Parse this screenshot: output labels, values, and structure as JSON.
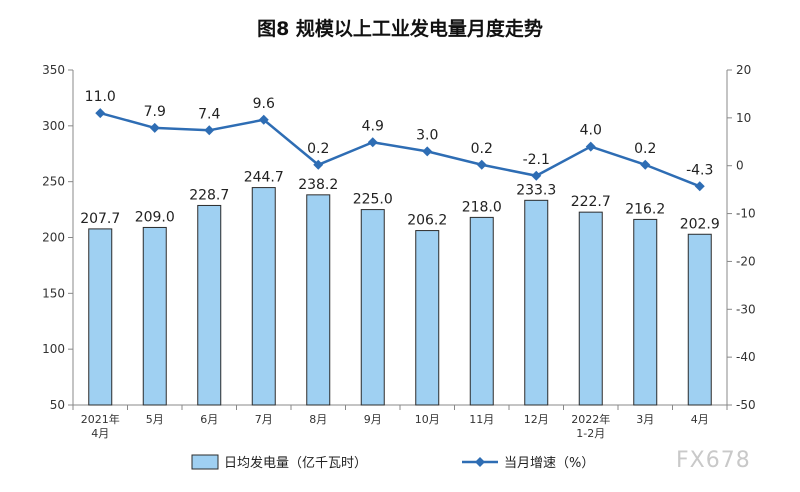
{
  "chart_data": {
    "type": "bar+line",
    "title": "图8  规模以上工业发电量月度走势",
    "categories": [
      [
        "2021年",
        "4月"
      ],
      [
        "5月"
      ],
      [
        "6月"
      ],
      [
        "7月"
      ],
      [
        "8月"
      ],
      [
        "9月"
      ],
      [
        "10月"
      ],
      [
        "11月"
      ],
      [
        "12月"
      ],
      [
        "2022年",
        "1-2月"
      ],
      [
        "3月"
      ],
      [
        "4月"
      ]
    ],
    "series": [
      {
        "name": "日均发电量（亿千瓦时）",
        "type": "bar",
        "axis": "left",
        "color": "#9fd0f2",
        "values": [
          207.7,
          209.0,
          228.7,
          244.7,
          238.2,
          225.0,
          206.2,
          218.0,
          233.3,
          222.7,
          216.2,
          202.9
        ],
        "labels": [
          "207.7",
          "209.0",
          "228.7",
          "244.7",
          "238.2",
          "225.0",
          "206.2",
          "218.0",
          "233.3",
          "222.7",
          "216.2",
          "202.9"
        ]
      },
      {
        "name": "当月增速（%）",
        "type": "line",
        "axis": "right",
        "color": "#2e6db4",
        "values": [
          11.0,
          7.9,
          7.4,
          9.6,
          0.2,
          4.9,
          3.0,
          0.2,
          -2.1,
          4.0,
          0.2,
          -4.3
        ],
        "labels": [
          "11.0",
          "7.9",
          "7.4",
          "9.6",
          "0.2",
          "4.9",
          "3.0",
          "0.2",
          "-2.1",
          "4.0",
          "0.2",
          "-4.3"
        ]
      }
    ],
    "y_left": {
      "min": 50,
      "max": 350,
      "ticks": [
        "350",
        "300",
        "250",
        "200",
        "150",
        "100",
        "50"
      ]
    },
    "y_right": {
      "min": -50,
      "max": 20,
      "ticks": [
        "20",
        "10",
        "0",
        "-10",
        "-20",
        "-30",
        "-40",
        "-50"
      ]
    },
    "legend": "bottom",
    "grid": false
  },
  "watermark": "FX678"
}
